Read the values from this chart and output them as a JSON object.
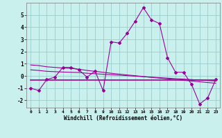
{
  "xlabel": "Windchill (Refroidissement éolien,°C)",
  "background_color": "#caf0ee",
  "grid_color": "#99cccc",
  "line_color": "#990099",
  "x_hours": [
    0,
    1,
    2,
    3,
    4,
    5,
    6,
    7,
    8,
    9,
    10,
    11,
    12,
    13,
    14,
    15,
    16,
    17,
    18,
    19,
    20,
    21,
    22,
    23
  ],
  "y_main": [
    -1.0,
    -1.2,
    -0.3,
    -0.1,
    0.7,
    0.7,
    0.5,
    -0.1,
    0.4,
    -1.2,
    2.8,
    2.7,
    3.5,
    4.5,
    5.6,
    4.6,
    4.3,
    1.5,
    0.3,
    0.3,
    -0.7,
    -2.3,
    -1.8,
    -0.3
  ],
  "y_trend1": [
    0.9,
    0.85,
    0.75,
    0.7,
    0.65,
    0.62,
    0.55,
    0.45,
    0.38,
    0.3,
    0.22,
    0.15,
    0.08,
    0.02,
    -0.05,
    -0.12,
    -0.18,
    -0.24,
    -0.3,
    -0.36,
    -0.42,
    -0.48,
    -0.54,
    -0.6
  ],
  "y_trend2": [
    0.5,
    0.45,
    0.38,
    0.35,
    0.32,
    0.3,
    0.28,
    0.22,
    0.18,
    0.14,
    0.1,
    0.06,
    0.02,
    -0.02,
    -0.06,
    -0.1,
    -0.14,
    -0.18,
    -0.22,
    -0.26,
    -0.3,
    -0.34,
    -0.38,
    -0.42
  ],
  "y_flat": [
    -0.35,
    -0.35,
    -0.35,
    -0.35,
    -0.35,
    -0.35,
    -0.35,
    -0.35,
    -0.35,
    -0.35,
    -0.35,
    -0.35,
    -0.35,
    -0.35,
    -0.35,
    -0.35,
    -0.35,
    -0.35,
    -0.35,
    -0.35,
    -0.35,
    -0.35,
    -0.35,
    -0.35
  ],
  "ylim": [
    -2.6,
    6.0
  ],
  "yticks": [
    -2,
    -1,
    0,
    1,
    2,
    3,
    4,
    5
  ],
  "marker": "D",
  "marker_size": 2.0,
  "line_width": 0.8
}
